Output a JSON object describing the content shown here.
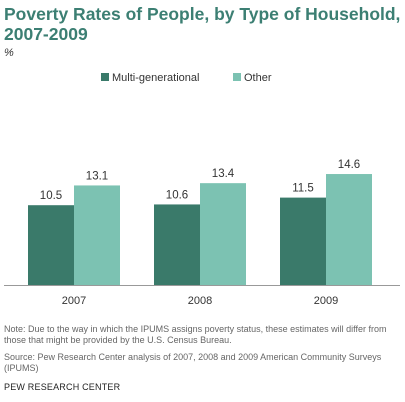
{
  "title": "Poverty Rates of People, by Type of Household, 2007-2009",
  "unit": "%",
  "note": "Note: Due to the way in which the IPUMS  assigns poverty status, these estimates will differ from those that might be provided by the U.S. Census Bureau.",
  "source": "Source: Pew Research Center analysis of 2007, 2008 and 2009 American Community Surveys (IPUMS)",
  "brand": "PEW RESEARCH CENTER",
  "colors": {
    "title": "#3c7f73",
    "multi_generational": "#3a7a6a",
    "other": "#7cc2b2",
    "axis": "#999999"
  },
  "chart_data": {
    "type": "bar",
    "categories": [
      "2007",
      "2008",
      "2009"
    ],
    "series": [
      {
        "name": "Multi-generational",
        "values": [
          10.5,
          10.6,
          11.5
        ]
      },
      {
        "name": "Other",
        "values": [
          13.1,
          13.4,
          14.6
        ]
      }
    ],
    "ylim": [
      0,
      16
    ],
    "grid": false,
    "legend": "top-center"
  }
}
